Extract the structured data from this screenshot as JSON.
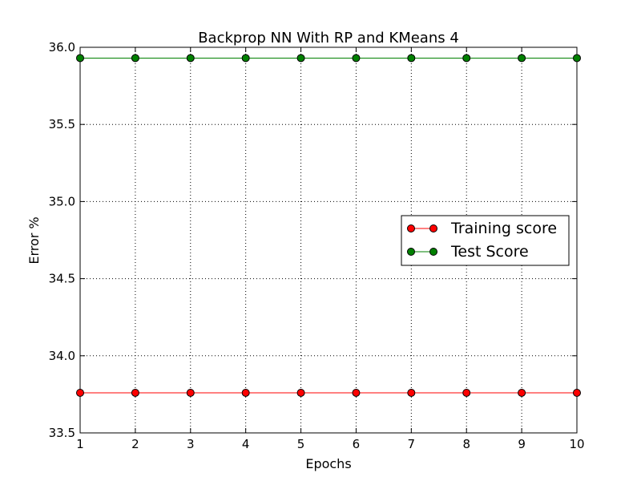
{
  "chart_data": {
    "type": "line",
    "title": "Backprop NN With RP and KMeans 4",
    "xlabel": "Epochs",
    "ylabel": "Error %",
    "xlim": [
      1,
      10
    ],
    "ylim": [
      33.5,
      36.0
    ],
    "x": [
      1,
      2,
      3,
      4,
      5,
      6,
      7,
      8,
      9,
      10
    ],
    "x_ticks": [
      "1",
      "2",
      "3",
      "4",
      "5",
      "6",
      "7",
      "8",
      "9",
      "10"
    ],
    "y_ticks": [
      "33.5",
      "34.0",
      "34.5",
      "35.0",
      "35.5",
      "36.0"
    ],
    "grid": true,
    "legend_position": "center-right",
    "series": [
      {
        "name": "Training score",
        "color": "#ff0000",
        "values": [
          33.76,
          33.76,
          33.76,
          33.76,
          33.76,
          33.76,
          33.76,
          33.76,
          33.76,
          33.76
        ]
      },
      {
        "name": "Test Score",
        "color": "#008000",
        "values": [
          35.93,
          35.93,
          35.93,
          35.93,
          35.93,
          35.93,
          35.93,
          35.93,
          35.93,
          35.93
        ]
      }
    ]
  }
}
